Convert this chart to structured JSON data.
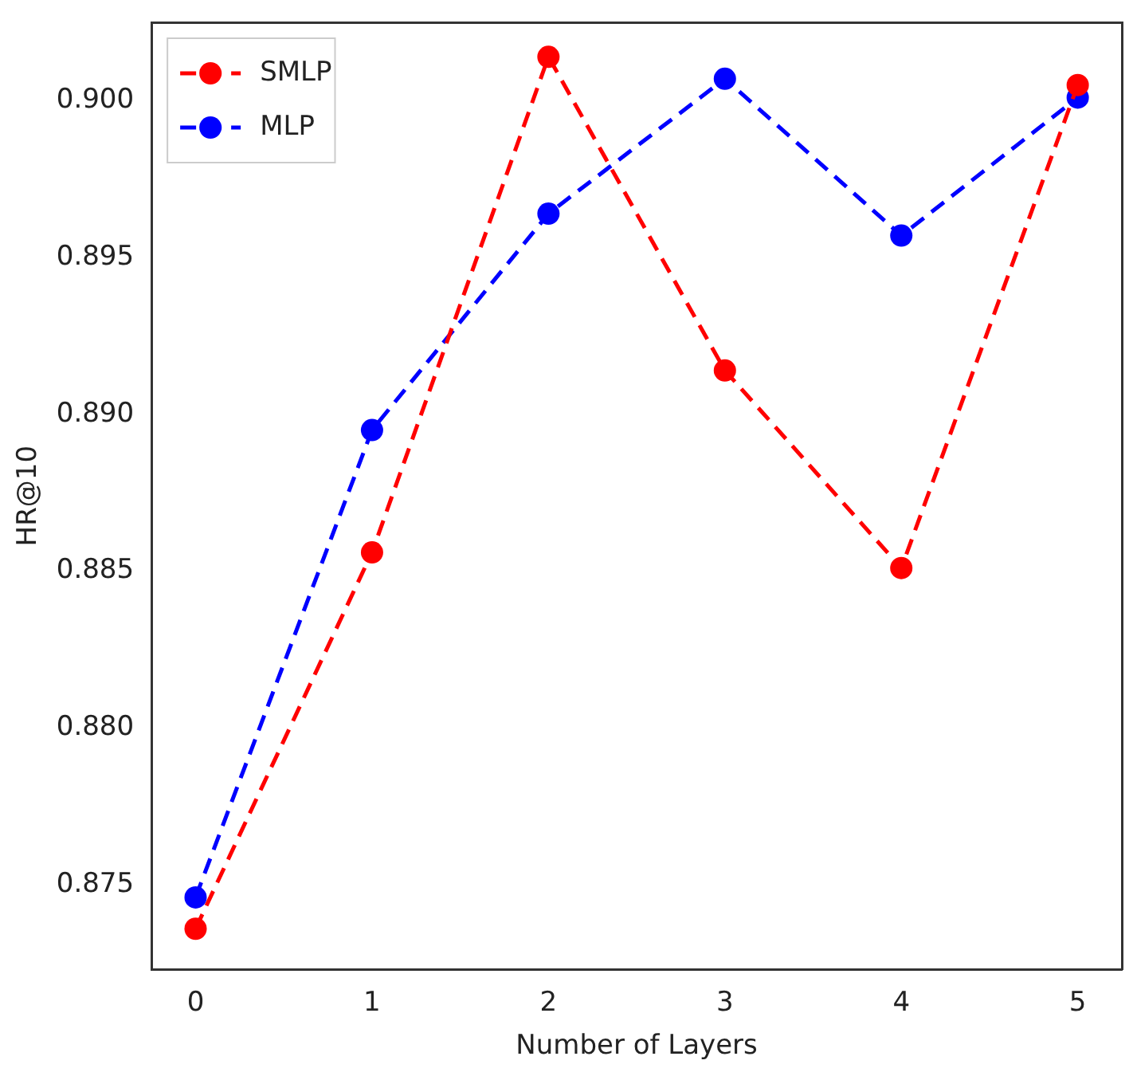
{
  "chart_data": {
    "type": "line",
    "xlabel": "Number of Layers",
    "ylabel": "HR@10",
    "x": [
      0,
      1,
      2,
      3,
      4,
      5
    ],
    "series": [
      {
        "name": "SMLP",
        "color": "#ff0000",
        "values": [
          0.8736,
          0.8856,
          0.9014,
          0.8914,
          0.8851,
          0.9005
        ]
      },
      {
        "name": "MLP",
        "color": "#0000ff",
        "values": [
          0.8746,
          0.8895,
          0.8964,
          0.9007,
          0.8957,
          0.9001
        ]
      }
    ],
    "xlim": [
      -0.25,
      5.25
    ],
    "xticks": [
      0,
      1,
      2,
      3,
      4,
      5
    ],
    "ylim": [
      0.8723,
      0.9025
    ],
    "yticks": [
      {
        "value": 0.875,
        "label": "0.875"
      },
      {
        "value": 0.88,
        "label": "0.880"
      },
      {
        "value": 0.885,
        "label": "0.885"
      },
      {
        "value": 0.89,
        "label": "0.890"
      },
      {
        "value": 0.895,
        "label": "0.895"
      },
      {
        "value": 0.9,
        "label": "0.900"
      }
    ],
    "grid": false,
    "legend": "top left",
    "marker": "circle",
    "line_style": "dashed"
  }
}
